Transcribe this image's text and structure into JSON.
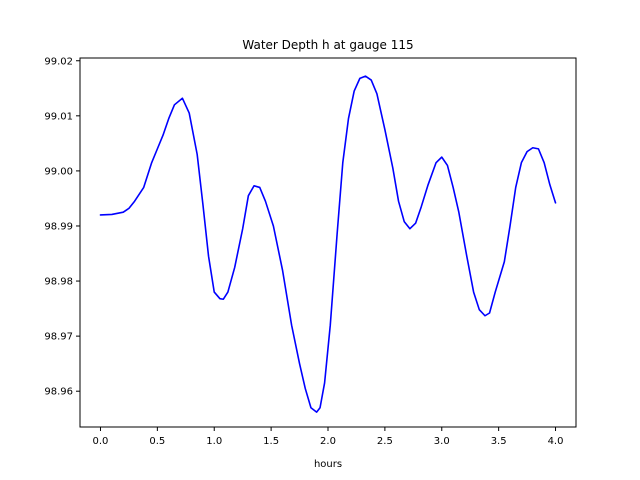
{
  "chart_data": {
    "type": "line",
    "title": "Water Depth h at gauge 115",
    "xlabel": "hours",
    "ylabel": "",
    "xlim": [
      -0.18,
      4.18
    ],
    "ylim": [
      98.9535,
      99.0205
    ],
    "xticks": [
      0.0,
      0.5,
      1.0,
      1.5,
      2.0,
      2.5,
      3.0,
      3.5,
      4.0
    ],
    "xtick_labels": [
      "0.0",
      "0.5",
      "1.0",
      "1.5",
      "2.0",
      "2.5",
      "3.0",
      "3.5",
      "4.0"
    ],
    "yticks": [
      98.96,
      98.97,
      98.98,
      98.99,
      99.0,
      99.01,
      99.02
    ],
    "ytick_labels": [
      "98.96",
      "98.97",
      "98.98",
      "98.99",
      "99.00",
      "99.01",
      "99.02"
    ],
    "grid": false,
    "series": [
      {
        "color": "#0000ff",
        "points": [
          [
            0.0,
            98.992
          ],
          [
            0.1,
            98.9921
          ],
          [
            0.2,
            98.9925
          ],
          [
            0.25,
            98.9932
          ],
          [
            0.3,
            98.9945
          ],
          [
            0.38,
            98.997
          ],
          [
            0.45,
            99.0015
          ],
          [
            0.5,
            99.004
          ],
          [
            0.55,
            99.0065
          ],
          [
            0.6,
            99.0095
          ],
          [
            0.65,
            99.012
          ],
          [
            0.72,
            99.0132
          ],
          [
            0.78,
            99.0105
          ],
          [
            0.85,
            99.003
          ],
          [
            0.9,
            98.994
          ],
          [
            0.95,
            98.9845
          ],
          [
            1.0,
            98.978
          ],
          [
            1.05,
            98.9768
          ],
          [
            1.08,
            98.9767
          ],
          [
            1.12,
            98.978
          ],
          [
            1.18,
            98.9825
          ],
          [
            1.25,
            98.9895
          ],
          [
            1.3,
            98.9955
          ],
          [
            1.35,
            98.9973
          ],
          [
            1.4,
            98.997
          ],
          [
            1.45,
            98.9945
          ],
          [
            1.52,
            98.99
          ],
          [
            1.6,
            98.982
          ],
          [
            1.68,
            98.972
          ],
          [
            1.75,
            98.965
          ],
          [
            1.8,
            98.9605
          ],
          [
            1.85,
            98.957
          ],
          [
            1.9,
            98.9562
          ],
          [
            1.93,
            98.957
          ],
          [
            1.97,
            98.9615
          ],
          [
            2.02,
            98.972
          ],
          [
            2.08,
            98.9885
          ],
          [
            2.13,
            99.0015
          ],
          [
            2.18,
            99.0095
          ],
          [
            2.23,
            99.0145
          ],
          [
            2.28,
            99.0168
          ],
          [
            2.33,
            99.0172
          ],
          [
            2.38,
            99.0165
          ],
          [
            2.43,
            99.014
          ],
          [
            2.5,
            99.0075
          ],
          [
            2.57,
            99.0005
          ],
          [
            2.62,
            98.9945
          ],
          [
            2.67,
            98.9908
          ],
          [
            2.72,
            98.9895
          ],
          [
            2.77,
            98.9905
          ],
          [
            2.82,
            98.9935
          ],
          [
            2.88,
            98.9975
          ],
          [
            2.95,
            99.0015
          ],
          [
            3.0,
            99.0025
          ],
          [
            3.05,
            99.001
          ],
          [
            3.1,
            98.997
          ],
          [
            3.15,
            98.9925
          ],
          [
            3.22,
            98.9845
          ],
          [
            3.28,
            98.978
          ],
          [
            3.33,
            98.9748
          ],
          [
            3.38,
            98.9737
          ],
          [
            3.42,
            98.9742
          ],
          [
            3.47,
            98.978
          ],
          [
            3.55,
            98.9835
          ],
          [
            3.6,
            98.99
          ],
          [
            3.65,
            98.997
          ],
          [
            3.7,
            99.0015
          ],
          [
            3.75,
            99.0035
          ],
          [
            3.8,
            99.0042
          ],
          [
            3.85,
            99.004
          ],
          [
            3.9,
            99.0015
          ],
          [
            3.95,
            98.9975
          ],
          [
            4.0,
            98.9942
          ]
        ]
      }
    ]
  }
}
